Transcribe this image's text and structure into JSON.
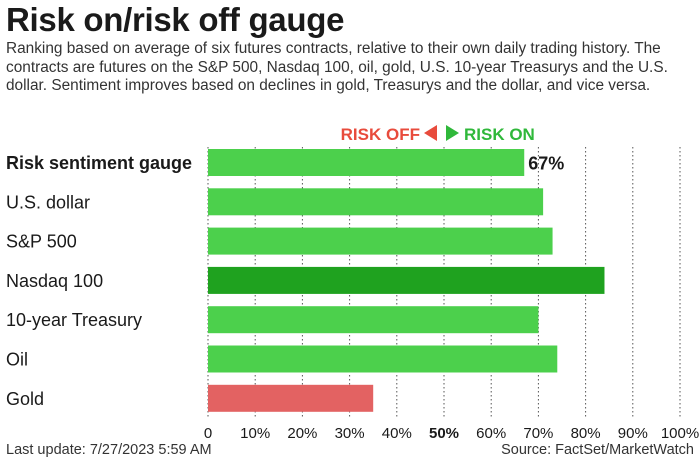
{
  "title": "Risk on/risk off gauge",
  "subtitle": "Ranking based on average of six futures contracts, relative to their own daily trading history. The contracts are futures on the S&P 500, Nasdaq 100, oil, gold, U.S. 10-year Treasurys and the U.S. dollar. Sentiment improves based on declines in gold, Treasurys and the dollar, and vice versa.",
  "legend": {
    "risk_off": "RISK OFF",
    "risk_on": "RISK ON"
  },
  "footer": {
    "last_update": "Last update: 7/27/2023 5:59 AM",
    "source": "Source: FactSet/MarketWatch"
  },
  "colors": {
    "risk_on": "#4cd04c",
    "risk_on_strong": "#1fa21f",
    "risk_off": "#e36262",
    "risk_off_text": "#e84b3c",
    "risk_on_text": "#2fb83a"
  },
  "chart_data": {
    "type": "bar",
    "orientation": "horizontal",
    "categories": [
      "Risk sentiment gauge",
      "U.S. dollar",
      "S&P 500",
      "Nasdaq 100",
      "10-year Treasury",
      "Oil",
      "Gold"
    ],
    "values": [
      67,
      71,
      73,
      84,
      70,
      74,
      35
    ],
    "value_label": "67%",
    "xlim": [
      0,
      100
    ],
    "xticks": [
      "0",
      "10%",
      "20%",
      "30%",
      "40%",
      "50%",
      "60%",
      "70%",
      "80%",
      "90%",
      "100%"
    ],
    "bar_colors": [
      "#4cd04c",
      "#4cd04c",
      "#4cd04c",
      "#1fa21f",
      "#4cd04c",
      "#4cd04c",
      "#e36262"
    ]
  }
}
